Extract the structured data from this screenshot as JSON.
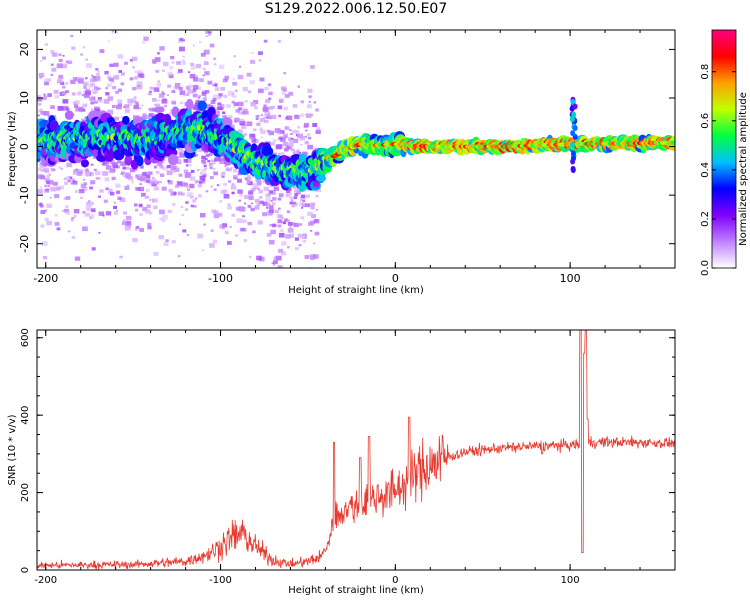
{
  "title": "S129.2022.006.12.50.E07",
  "chart_data": [
    {
      "type": "heatmap",
      "xlabel": "Height of straight line (km)",
      "ylabel": "Frequency (Hz)",
      "xlim": [
        -205,
        160
      ],
      "ylim": [
        -25,
        24
      ],
      "xticks": [
        -200,
        -100,
        0,
        100
      ],
      "yticks": [
        -20,
        -10,
        0,
        10,
        20
      ],
      "colorbar": {
        "label": "Normalized spectral amplitude",
        "ticks": [
          "0.0",
          "0.2",
          "0.4",
          "0.6",
          "0.8"
        ],
        "range": [
          0,
          0.97
        ],
        "colors": [
          "#ffffff",
          "#c080ff",
          "#8000ff",
          "#0000ff",
          "#00c0ff",
          "#00ff40",
          "#c0ff00",
          "#ffa000",
          "#ff0000",
          "#ff0080"
        ]
      },
      "center_track": [
        [
          -205,
          1.0
        ],
        [
          -170,
          2.0
        ],
        [
          -140,
          1.5
        ],
        [
          -120,
          3.5
        ],
        [
          -110,
          4.0
        ],
        [
          -95,
          1.0
        ],
        [
          -85,
          -2.0
        ],
        [
          -70,
          -4.5
        ],
        [
          -55,
          -5.0
        ],
        [
          -48,
          -5.5
        ],
        [
          -40,
          -3.0
        ],
        [
          -30,
          -1.0
        ],
        [
          -20,
          0.5
        ],
        [
          -10,
          0.3
        ],
        [
          0,
          0.5
        ],
        [
          20,
          0.0
        ],
        [
          60,
          0.0
        ],
        [
          100,
          0.5
        ],
        [
          160,
          0.8
        ]
      ]
    },
    {
      "type": "line",
      "xlabel": "Height of straight line (km)",
      "ylabel": "SNR (10 * v/v)",
      "xlim": [
        -205,
        160
      ],
      "ylim": [
        0,
        620
      ],
      "xticks": [
        -200,
        -100,
        0,
        100
      ],
      "yticks": [
        0,
        200,
        400,
        600
      ],
      "series": [
        {
          "color": "#e8392f",
          "trend": [
            [
              -205,
              12
            ],
            [
              -150,
              14
            ],
            [
              -120,
              22
            ],
            [
              -105,
              45
            ],
            [
              -95,
              80
            ],
            [
              -88,
              95
            ],
            [
              -80,
              60
            ],
            [
              -70,
              25
            ],
            [
              -60,
              15
            ],
            [
              -50,
              22
            ],
            [
              -42,
              35
            ],
            [
              -38,
              75
            ],
            [
              -35,
              130
            ],
            [
              -30,
              155
            ],
            [
              -20,
              170
            ],
            [
              -10,
              190
            ],
            [
              0,
              205
            ],
            [
              8,
              230
            ],
            [
              15,
              260
            ],
            [
              25,
              285
            ],
            [
              40,
              305
            ],
            [
              60,
              315
            ],
            [
              80,
              320
            ],
            [
              100,
              322
            ],
            [
              105,
              325
            ],
            [
              110,
              330
            ],
            [
              130,
              330
            ],
            [
              160,
              328
            ]
          ],
          "spikes": [
            [
              -35,
              330
            ],
            [
              -20,
              290
            ],
            [
              -15,
              345
            ],
            [
              8,
              395
            ],
            [
              84,
              300
            ],
            [
              106,
              620
            ],
            [
              107,
              45
            ],
            [
              108,
              560
            ],
            [
              109,
              620
            ],
            [
              110,
              390
            ]
          ]
        }
      ]
    }
  ]
}
